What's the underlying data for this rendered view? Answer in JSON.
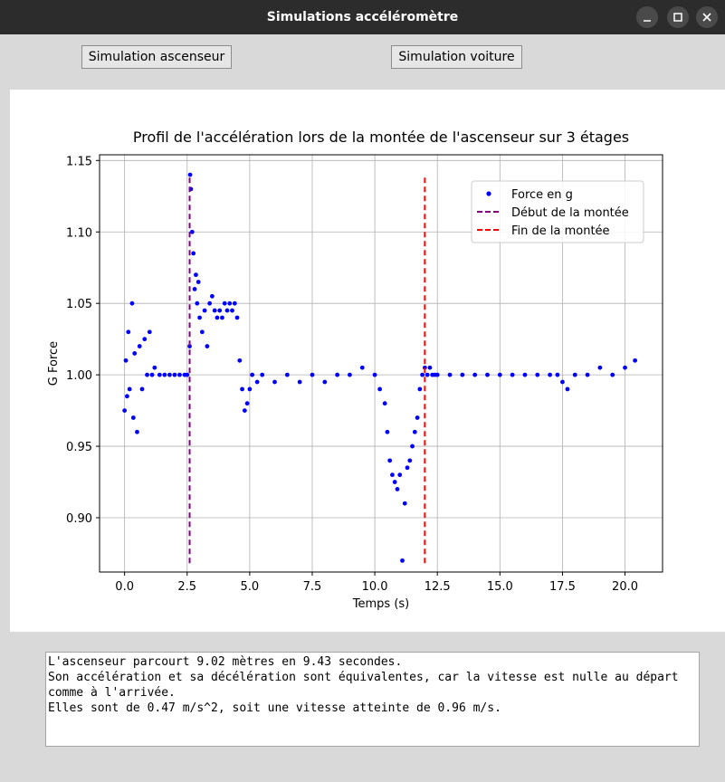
{
  "window": {
    "title": "Simulations accéléromètre",
    "controls": [
      "minimize-icon",
      "maximize-icon",
      "close-icon"
    ]
  },
  "toolbar": {
    "elevator_label": "Simulation ascenseur",
    "car_label": "Simulation voiture"
  },
  "chart_data": {
    "type": "scatter",
    "title": "Profil de l'accélération lors de la montée de l'ascenseur sur 3 étages",
    "xlabel": "Temps (s)",
    "ylabel": "G Force",
    "xlim": [
      -1.0,
      21.5
    ],
    "ylim": [
      0.862,
      1.154
    ],
    "xticks": [
      0.0,
      2.5,
      5.0,
      7.5,
      10.0,
      12.5,
      15.0,
      17.5,
      20.0
    ],
    "xtick_labels": [
      "0.0",
      "2.5",
      "5.0",
      "7.5",
      "10.0",
      "12.5",
      "15.0",
      "17.5",
      "20.0"
    ],
    "yticks": [
      0.9,
      0.95,
      1.0,
      1.05,
      1.1,
      1.15
    ],
    "ytick_labels": [
      "0.90",
      "0.95",
      "1.00",
      "1.05",
      "1.10",
      "1.15"
    ],
    "grid": true,
    "legend_position": "upper right",
    "legend": [
      {
        "label": "Force en g",
        "style": "dot",
        "color": "#0000ff"
      },
      {
        "label": "Début de la montée",
        "style": "dashed",
        "color": "#800080"
      },
      {
        "label": "Fin de la montée",
        "style": "dashed",
        "color": "#ff0000"
      }
    ],
    "series": [
      {
        "name": "Force en g",
        "color": "#0000ff",
        "x": [
          0.0,
          0.05,
          0.1,
          0.15,
          0.2,
          0.3,
          0.35,
          0.4,
          0.5,
          0.6,
          0.7,
          0.8,
          0.9,
          1.0,
          1.1,
          1.2,
          1.4,
          1.6,
          1.8,
          2.0,
          2.2,
          2.4,
          2.5,
          2.6,
          2.62,
          2.65,
          2.7,
          2.75,
          2.8,
          2.85,
          2.9,
          2.95,
          3.0,
          3.1,
          3.2,
          3.3,
          3.4,
          3.5,
          3.6,
          3.7,
          3.8,
          3.9,
          4.0,
          4.1,
          4.2,
          4.3,
          4.4,
          4.5,
          4.6,
          4.7,
          4.8,
          4.9,
          5.0,
          5.1,
          5.3,
          5.5,
          6.0,
          6.5,
          7.0,
          7.5,
          8.0,
          8.5,
          9.0,
          9.5,
          10.0,
          10.2,
          10.4,
          10.5,
          10.6,
          10.7,
          10.8,
          10.9,
          11.0,
          11.1,
          11.2,
          11.3,
          11.4,
          11.5,
          11.6,
          11.7,
          11.8,
          11.9,
          12.0,
          12.1,
          12.2,
          12.3,
          12.4,
          12.5,
          13.0,
          13.5,
          14.0,
          14.5,
          15.0,
          15.5,
          16.0,
          16.5,
          17.0,
          17.3,
          17.5,
          17.7,
          18.0,
          18.5,
          19.0,
          19.5,
          20.0,
          20.4
        ],
        "y": [
          0.975,
          1.01,
          0.985,
          1.03,
          0.99,
          1.05,
          0.97,
          1.015,
          0.96,
          1.02,
          0.99,
          1.025,
          1.0,
          1.03,
          1.0,
          1.005,
          1.0,
          1.0,
          1.0,
          1.0,
          1.0,
          1.0,
          1.0,
          1.02,
          1.14,
          1.13,
          1.1,
          1.085,
          1.06,
          1.07,
          1.05,
          1.065,
          1.04,
          1.03,
          1.045,
          1.02,
          1.05,
          1.055,
          1.045,
          1.04,
          1.045,
          1.04,
          1.05,
          1.045,
          1.05,
          1.045,
          1.05,
          1.04,
          1.01,
          0.99,
          0.975,
          0.98,
          0.99,
          1.0,
          0.995,
          1.0,
          0.995,
          1.0,
          0.995,
          1.0,
          0.995,
          1.0,
          1.0,
          1.005,
          1.0,
          0.99,
          0.98,
          0.96,
          0.94,
          0.93,
          0.925,
          0.92,
          0.93,
          0.87,
          0.91,
          0.935,
          0.94,
          0.95,
          0.96,
          0.97,
          0.99,
          1.0,
          1.005,
          1.0,
          1.005,
          1.0,
          1.0,
          1.0,
          1.0,
          1.0,
          1.0,
          1.0,
          1.0,
          1.0,
          1.0,
          1.0,
          1.0,
          1.0,
          0.995,
          0.99,
          1.0,
          1.0,
          1.005,
          1.0,
          1.005,
          1.01
        ]
      }
    ],
    "vlines": [
      {
        "name": "Début de la montée",
        "x": 2.6,
        "ymin": 0.867,
        "ymax": 1.138,
        "color": "#800080"
      },
      {
        "name": "Fin de la montée",
        "x": 12.0,
        "ymin": 0.867,
        "ymax": 1.138,
        "color": "#ff0000"
      }
    ]
  },
  "output_text": {
    "lines": [
      "L'ascenseur parcourt 9.02 mètres en 9.43 secondes.",
      "Son accélération et sa décélération sont équivalentes, car la vitesse est nulle au départ",
      "comme à l'arrivée.",
      "Elles sont de 0.47 m/s^2, soit une vitesse atteinte de 0.96 m/s."
    ]
  }
}
